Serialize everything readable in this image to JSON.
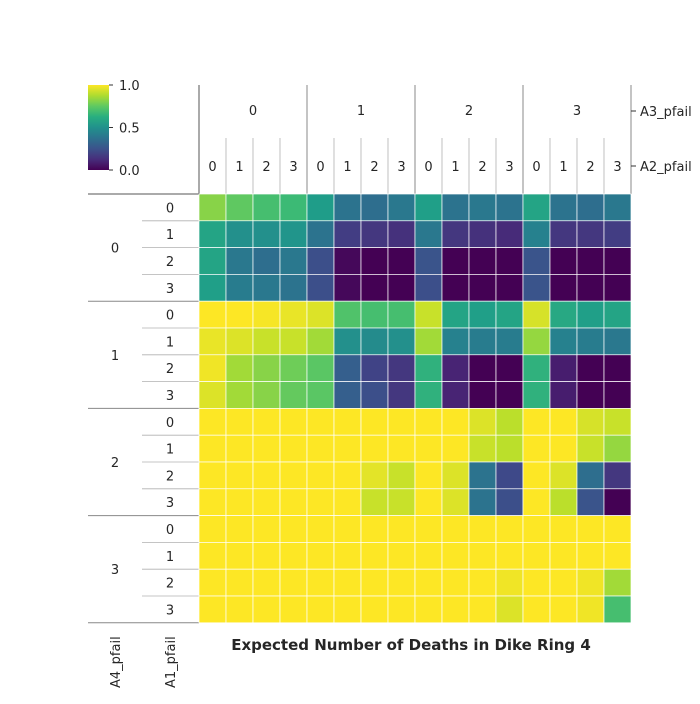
{
  "chart_data": {
    "type": "heatmap",
    "title": "Expected Number of Deaths in Dike Ring 4",
    "colormap": "viridis",
    "colorbar": {
      "min": 0.0,
      "max": 1.0,
      "ticks": [
        "0.0",
        "0.5",
        "1.0"
      ]
    },
    "column_levels": [
      {
        "name": "A3_pfail",
        "values": [
          "0",
          "1",
          "2",
          "3"
        ]
      },
      {
        "name": "A2_pfail",
        "values": [
          "0",
          "1",
          "2",
          "3"
        ]
      }
    ],
    "row_levels": [
      {
        "name": "A4_pfail",
        "values": [
          "0",
          "1",
          "2",
          "3"
        ]
      },
      {
        "name": "A1_pfail",
        "values": [
          "0",
          "1",
          "2",
          "3"
        ]
      }
    ],
    "values": [
      [
        0.82,
        0.75,
        0.7,
        0.68,
        0.55,
        0.38,
        0.36,
        0.4,
        0.56,
        0.38,
        0.4,
        0.38,
        0.58,
        0.38,
        0.36,
        0.4
      ],
      [
        0.58,
        0.5,
        0.5,
        0.52,
        0.38,
        0.18,
        0.16,
        0.14,
        0.4,
        0.16,
        0.14,
        0.12,
        0.44,
        0.16,
        0.16,
        0.18
      ],
      [
        0.58,
        0.4,
        0.36,
        0.4,
        0.24,
        0.02,
        0.0,
        0.0,
        0.26,
        0.0,
        0.0,
        0.0,
        0.26,
        0.0,
        0.0,
        0.0
      ],
      [
        0.56,
        0.42,
        0.4,
        0.38,
        0.24,
        0.02,
        0.0,
        0.0,
        0.24,
        0.0,
        0.0,
        0.0,
        0.26,
        0.0,
        0.0,
        0.0
      ],
      [
        1.0,
        1.0,
        0.99,
        0.97,
        0.95,
        0.72,
        0.7,
        0.7,
        0.92,
        0.58,
        0.56,
        0.58,
        0.94,
        0.6,
        0.56,
        0.58
      ],
      [
        0.97,
        0.95,
        0.92,
        0.92,
        0.86,
        0.5,
        0.48,
        0.5,
        0.86,
        0.44,
        0.42,
        0.42,
        0.84,
        0.44,
        0.42,
        0.4
      ],
      [
        0.98,
        0.86,
        0.82,
        0.78,
        0.74,
        0.3,
        0.2,
        0.16,
        0.64,
        0.1,
        0.0,
        0.0,
        0.64,
        0.08,
        0.0,
        0.0
      ],
      [
        0.95,
        0.86,
        0.82,
        0.76,
        0.74,
        0.3,
        0.24,
        0.16,
        0.64,
        0.1,
        0.0,
        0.0,
        0.64,
        0.08,
        0.0,
        0.0
      ],
      [
        1.0,
        1.0,
        1.0,
        1.0,
        1.0,
        1.0,
        1.0,
        1.0,
        1.0,
        1.0,
        0.95,
        0.9,
        1.0,
        1.0,
        0.94,
        0.92
      ],
      [
        1.0,
        1.0,
        1.0,
        1.0,
        1.0,
        1.0,
        1.0,
        1.0,
        1.0,
        1.0,
        0.92,
        0.9,
        1.0,
        1.0,
        0.92,
        0.84
      ],
      [
        1.0,
        1.0,
        1.0,
        1.0,
        1.0,
        1.0,
        0.96,
        0.92,
        1.0,
        0.95,
        0.38,
        0.22,
        1.0,
        0.95,
        0.36,
        0.16
      ],
      [
        1.0,
        1.0,
        1.0,
        1.0,
        1.0,
        1.0,
        0.92,
        0.92,
        1.0,
        0.95,
        0.38,
        0.24,
        1.0,
        0.9,
        0.26,
        0.0
      ],
      [
        1.0,
        1.0,
        1.0,
        1.0,
        1.0,
        1.0,
        1.0,
        1.0,
        1.0,
        1.0,
        1.0,
        1.0,
        1.0,
        1.0,
        1.0,
        1.0
      ],
      [
        1.0,
        1.0,
        1.0,
        1.0,
        1.0,
        1.0,
        1.0,
        1.0,
        1.0,
        1.0,
        1.0,
        1.0,
        1.0,
        1.0,
        1.0,
        1.0
      ],
      [
        1.0,
        1.0,
        1.0,
        1.0,
        1.0,
        1.0,
        1.0,
        1.0,
        1.0,
        1.0,
        1.0,
        0.98,
        1.0,
        1.0,
        0.98,
        0.86
      ],
      [
        1.0,
        1.0,
        1.0,
        1.0,
        1.0,
        1.0,
        1.0,
        1.0,
        1.0,
        1.0,
        1.0,
        0.95,
        1.0,
        1.0,
        0.98,
        0.7
      ]
    ]
  }
}
